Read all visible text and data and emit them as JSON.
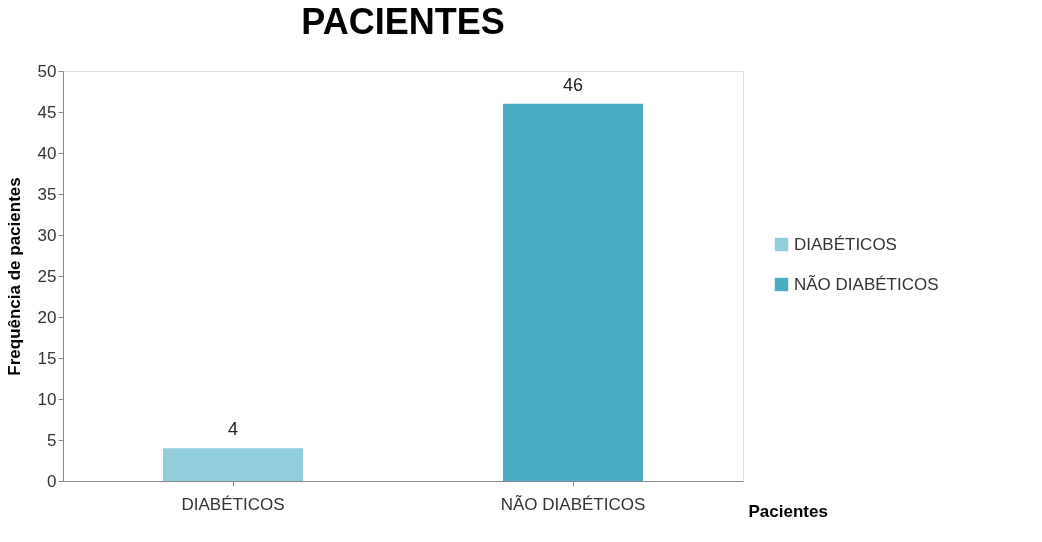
{
  "chart_data": {
    "type": "bar",
    "title": "PACIENTES",
    "xlabel": "Pacientes",
    "ylabel": "Frequência de pacientes",
    "categories": [
      "DIABÉTICOS",
      "NÃO DIABÉTICOS"
    ],
    "series": [
      {
        "name": "DIABÉTICOS",
        "color": "#92cddc",
        "values": [
          4,
          null
        ]
      },
      {
        "name": "NÃO DIABÉTICOS",
        "color": "#4bacc6",
        "values": [
          null,
          46
        ]
      }
    ],
    "ylim": [
      0,
      50
    ],
    "yticks": [
      0,
      5,
      10,
      15,
      20,
      25,
      30,
      35,
      40,
      45,
      50
    ],
    "grid": false,
    "legend": "right",
    "data_labels": true
  }
}
